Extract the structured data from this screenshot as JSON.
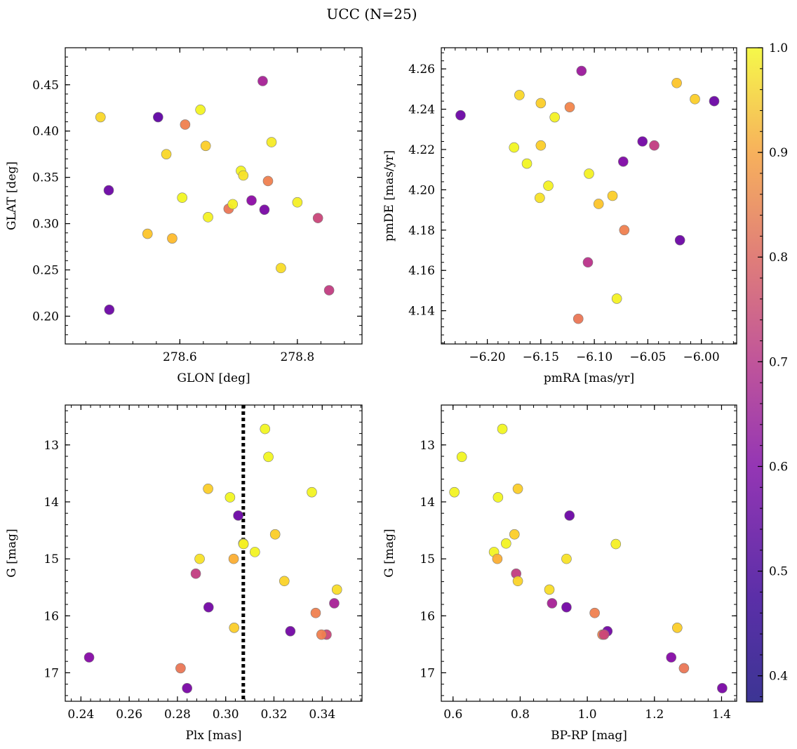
{
  "figure": {
    "title": "UCC (N=25)"
  },
  "chart_data": [
    {
      "type": "scatter",
      "xlabel": "GLON [deg]",
      "ylabel": "GLAT [deg]",
      "xlim": [
        278.405,
        278.91
      ],
      "ylim": [
        0.17,
        0.49
      ],
      "xticks": [
        278.6,
        278.8
      ],
      "xticklabels": [
        "278.6",
        "278.8"
      ],
      "yticks": [
        0.2,
        0.25,
        0.3,
        0.35,
        0.4,
        0.45
      ],
      "yticklabels": [
        "0.20",
        "0.25",
        "0.30",
        "0.35",
        "0.40",
        "0.45"
      ],
      "x": [
        278.465,
        278.479,
        278.48,
        278.563,
        278.609,
        278.577,
        278.545,
        278.587,
        278.604,
        278.635,
        278.644,
        278.648,
        278.683,
        278.69,
        278.704,
        278.708,
        278.722,
        278.741,
        278.744,
        278.75,
        278.756,
        278.772,
        278.8,
        278.835,
        278.854
      ],
      "y": [
        0.415,
        0.336,
        0.207,
        0.415,
        0.407,
        0.375,
        0.289,
        0.284,
        0.328,
        0.423,
        0.384,
        0.307,
        0.316,
        0.321,
        0.357,
        0.352,
        0.325,
        0.454,
        0.315,
        0.346,
        0.388,
        0.252,
        0.323,
        0.306,
        0.228
      ],
      "c": [
        0.88,
        0.42,
        0.42,
        0.4,
        0.72,
        0.88,
        0.84,
        0.82,
        0.98,
        0.97,
        0.86,
        0.96,
        0.7,
        0.95,
        0.97,
        0.9,
        0.47,
        0.52,
        0.44,
        0.72,
        0.93,
        0.89,
        0.95,
        0.6,
        0.58
      ]
    },
    {
      "type": "scatter",
      "xlabel": "pmRA [mas/yr]",
      "ylabel": "pmDE [mas/yr]",
      "xlim": [
        -6.243,
        -5.967
      ],
      "ylim": [
        4.1235,
        4.2705
      ],
      "xticks": [
        -6.2,
        -6.15,
        -6.1,
        -6.05,
        -6.0
      ],
      "xticklabels": [
        "−6.20",
        "−6.15",
        "−6.10",
        "−6.05",
        "−6.00"
      ],
      "yticks": [
        4.14,
        4.16,
        4.18,
        4.2,
        4.22,
        4.24,
        4.26
      ],
      "yticklabels": [
        "4.14",
        "4.16",
        "4.18",
        "4.20",
        "4.22",
        "4.24",
        "4.26"
      ],
      "x": [
        -6.225,
        -6.17,
        -6.15,
        -6.137,
        -6.123,
        -6.112,
        -6.175,
        -6.15,
        -6.163,
        -6.143,
        -6.105,
        -6.151,
        -6.096,
        -6.083,
        -6.073,
        -6.055,
        -6.044,
        -6.023,
        -6.006,
        -5.988,
        -6.072,
        -6.02,
        -6.106,
        -6.079,
        -6.115
      ],
      "y": [
        4.237,
        4.247,
        4.243,
        4.236,
        4.241,
        4.259,
        4.221,
        4.222,
        4.213,
        4.202,
        4.208,
        4.196,
        4.193,
        4.197,
        4.214,
        4.224,
        4.222,
        4.253,
        4.245,
        4.244,
        4.18,
        4.175,
        4.164,
        4.146,
        4.136
      ],
      "c": [
        0.42,
        0.88,
        0.86,
        0.96,
        0.73,
        0.5,
        0.98,
        0.86,
        0.98,
        0.96,
        0.96,
        0.9,
        0.84,
        0.86,
        0.45,
        0.43,
        0.58,
        0.84,
        0.86,
        0.42,
        0.72,
        0.42,
        0.56,
        0.96,
        0.7
      ]
    },
    {
      "type": "scatter",
      "xlabel": "Plx [mas]",
      "ylabel": "G [mag]",
      "xlim": [
        0.2335,
        0.3565
      ],
      "ylim": [
        17.5,
        12.3
      ],
      "xticks": [
        0.24,
        0.26,
        0.28,
        0.3,
        0.32,
        0.34
      ],
      "xticklabels": [
        "0.24",
        "0.26",
        "0.28",
        "0.30",
        "0.32",
        "0.34"
      ],
      "yticks": [
        13,
        14,
        15,
        16,
        17
      ],
      "yticklabels": [
        "13",
        "14",
        "15",
        "16",
        "17"
      ],
      "vline": {
        "x": 0.3073,
        "style": "dotted",
        "color": "#000000"
      },
      "x": [
        0.3163,
        0.3177,
        0.2927,
        0.3018,
        0.3357,
        0.3052,
        0.3205,
        0.3073,
        0.3121,
        0.2892,
        0.3033,
        0.2876,
        0.3243,
        0.3461,
        0.2929,
        0.345,
        0.3373,
        0.3035,
        0.3268,
        0.3418,
        0.3397,
        0.2434,
        0.2813,
        0.284,
        0.3074
      ],
      "y": [
        12.72,
        13.21,
        13.77,
        13.92,
        13.83,
        14.24,
        14.57,
        14.73,
        14.88,
        15.0,
        15.0,
        15.26,
        15.39,
        15.54,
        15.85,
        15.78,
        15.95,
        16.21,
        16.27,
        16.33,
        16.33,
        16.73,
        16.92,
        17.27,
        14.74
      ],
      "c": [
        0.98,
        0.98,
        0.86,
        0.98,
        0.97,
        0.42,
        0.86,
        0.95,
        0.97,
        0.9,
        0.8,
        0.58,
        0.87,
        0.89,
        0.43,
        0.52,
        0.72,
        0.86,
        0.43,
        0.6,
        0.72,
        0.46,
        0.7,
        0.44,
        0.95
      ]
    },
    {
      "type": "scatter",
      "xlabel": "BP-RP [mag]",
      "ylabel": "G [mag]",
      "xlim": [
        0.565,
        1.445
      ],
      "ylim": [
        17.5,
        12.3
      ],
      "xticks": [
        0.6,
        0.8,
        1.0,
        1.2,
        1.4
      ],
      "xticklabels": [
        "0.6",
        "0.8",
        "1.0",
        "1.2",
        "1.4"
      ],
      "yticks": [
        13,
        14,
        15,
        16,
        17
      ],
      "yticklabels": [
        "13",
        "14",
        "15",
        "16",
        "17"
      ],
      "x": [
        0.747,
        0.626,
        0.793,
        0.604,
        0.734,
        0.947,
        0.783,
        0.758,
        0.722,
        0.732,
        0.938,
        0.788,
        0.793,
        0.887,
        1.085,
        0.895,
        0.938,
        1.022,
        1.268,
        1.06,
        1.045,
        1.05,
        1.25,
        1.288,
        1.402
      ],
      "y": [
        12.72,
        13.21,
        13.77,
        13.83,
        13.92,
        14.24,
        14.57,
        14.73,
        14.88,
        15.0,
        15.0,
        15.26,
        15.39,
        15.54,
        14.74,
        15.78,
        15.85,
        15.95,
        16.21,
        16.27,
        16.33,
        16.33,
        16.73,
        16.92,
        17.27
      ],
      "c": [
        0.98,
        0.98,
        0.86,
        0.97,
        0.98,
        0.42,
        0.86,
        0.97,
        0.97,
        0.8,
        0.9,
        0.58,
        0.87,
        0.89,
        0.95,
        0.52,
        0.43,
        0.72,
        0.86,
        0.43,
        0.72,
        0.6,
        0.46,
        0.7,
        0.44
      ]
    }
  ],
  "colorbar": {
    "cmap": "plasma",
    "range": [
      0.375,
      1.0
    ],
    "ticks": [
      0.4,
      0.5,
      0.6,
      0.7,
      0.8,
      0.9,
      1.0
    ],
    "ticklabels": [
      "0.4",
      "0.5",
      "0.6",
      "0.7",
      "0.8",
      "0.9",
      "1.0"
    ]
  }
}
